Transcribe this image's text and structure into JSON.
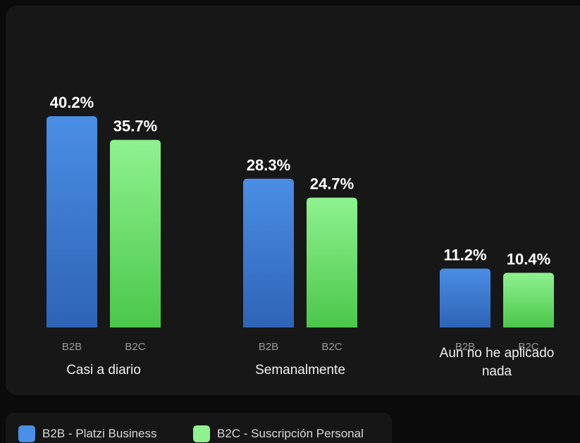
{
  "chart_data": {
    "type": "bar",
    "categories": [
      "Casi a diario",
      "Semanalmente",
      "Aun no he aplicado nada"
    ],
    "category_lines": [
      [
        "Casi a diario"
      ],
      [
        "Semanalmente"
      ],
      [
        "Aun no he aplicado",
        "nada"
      ]
    ],
    "bar_labels": [
      "B2B",
      "B2C"
    ],
    "series": [
      {
        "name": "B2B - Platzi Business",
        "values": [
          40.2,
          28.3,
          11.2
        ],
        "labels": [
          "40.2%",
          "28.3%",
          "11.2%"
        ]
      },
      {
        "name": "B2C - Suscripción Personal",
        "values": [
          35.7,
          24.7,
          10.4
        ],
        "labels": [
          "35.7%",
          "24.7%",
          "10.4%"
        ]
      }
    ],
    "ylim": [
      0,
      40.2
    ],
    "grid": false,
    "legend_position": "bottom-left"
  },
  "colors": {
    "b2b_top": "#4a8ee5",
    "b2b_bottom": "#2e64b6",
    "b2c_top": "#8ff28f",
    "b2c_bottom": "#4bc74b",
    "value_label": "#ffffff",
    "bar_label": "#9a9a9a",
    "category_label": "#f0f0f0"
  }
}
